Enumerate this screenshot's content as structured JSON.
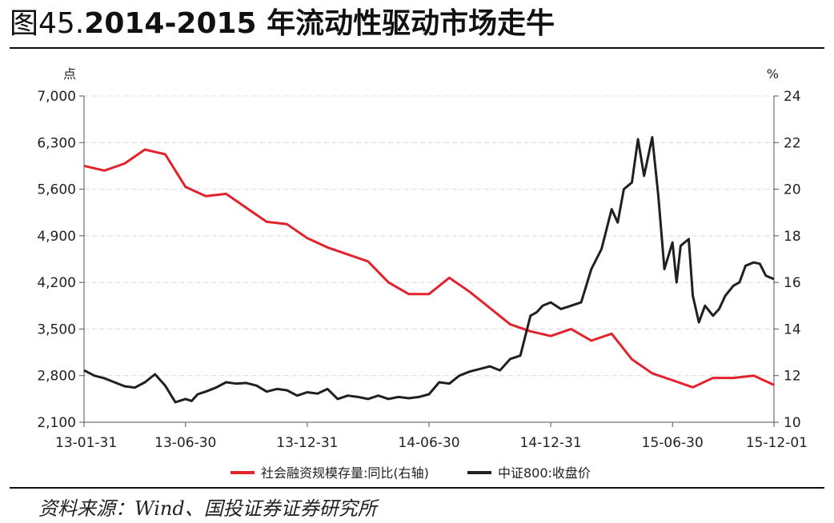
{
  "figure": {
    "number": "图45.",
    "title": "2014-2015 年流动性驱动市场走牛",
    "source": "资料来源：Wind、国投证券证券研究所"
  },
  "chart_data": {
    "type": "line",
    "title": "2014-2015 年流动性驱动市场走牛",
    "y_left": {
      "unit": "点",
      "ticks": [
        "7,000",
        "6,300",
        "5,600",
        "4,900",
        "4,200",
        "3,500",
        "2,800",
        "2,100"
      ],
      "range": [
        2100,
        7000
      ]
    },
    "y_right": {
      "unit": "%",
      "ticks": [
        "24",
        "22",
        "20",
        "18",
        "16",
        "14",
        "12",
        "10"
      ],
      "range": [
        10,
        24
      ]
    },
    "x_ticks": [
      "13-01-31",
      "13-06-30",
      "13-12-31",
      "14-06-30",
      "14-12-31",
      "15-06-30",
      "15-12-01"
    ],
    "x_tick_months": [
      0,
      5,
      11,
      17,
      23,
      29,
      34
    ],
    "x_range_months": [
      0,
      34
    ],
    "legend_position": "bottom",
    "grid": true,
    "series": [
      {
        "name": "社会融资规模存量:同比(右轴)",
        "color": "#e3232c",
        "axis": "right",
        "x_months": [
          0,
          1,
          2,
          3,
          4,
          5,
          6,
          7,
          8,
          9,
          10,
          11,
          12,
          13,
          14,
          15,
          16,
          17,
          18,
          19,
          20,
          21,
          22,
          23,
          24,
          25,
          26,
          27,
          28,
          29,
          30,
          31,
          32,
          33,
          34
        ],
        "values": [
          21.0,
          20.8,
          21.1,
          21.7,
          21.5,
          20.1,
          19.7,
          19.8,
          19.2,
          18.6,
          18.5,
          17.9,
          17.5,
          17.2,
          16.9,
          16.0,
          15.5,
          15.5,
          16.2,
          15.6,
          14.9,
          14.2,
          13.9,
          13.7,
          14.0,
          13.5,
          13.8,
          12.7,
          12.1,
          11.8,
          11.5,
          11.9,
          11.9,
          12.0,
          11.6
        ]
      },
      {
        "name": "中证800:收盘价",
        "color": "#231f20",
        "axis": "left",
        "x_months": [
          0,
          0.5,
          1,
          1.5,
          2,
          2.5,
          3,
          3.5,
          4,
          4.5,
          5,
          5.3,
          5.6,
          6,
          6.5,
          7,
          7.5,
          8,
          8.5,
          9,
          9.5,
          10,
          10.5,
          11,
          11.5,
          12,
          12.5,
          13,
          13.5,
          14,
          14.5,
          15,
          15.5,
          16,
          16.5,
          17,
          17.5,
          18,
          18.5,
          19,
          19.5,
          20,
          20.5,
          21,
          21.5,
          22,
          22.3,
          22.6,
          23,
          23.5,
          24,
          24.5,
          25,
          25.5,
          26,
          26.3,
          26.6,
          27,
          27.3,
          27.6,
          28,
          28.3,
          28.6,
          29,
          29.2,
          29.4,
          29.6,
          29.8,
          30,
          30.3,
          30.6,
          31,
          31.3,
          31.6,
          32,
          32.3,
          32.6,
          33,
          33.3,
          33.6,
          34
        ],
        "values": [
          2880,
          2800,
          2760,
          2700,
          2640,
          2620,
          2700,
          2820,
          2650,
          2400,
          2450,
          2420,
          2520,
          2560,
          2620,
          2700,
          2680,
          2690,
          2650,
          2560,
          2600,
          2580,
          2500,
          2550,
          2530,
          2600,
          2450,
          2500,
          2480,
          2450,
          2500,
          2450,
          2480,
          2460,
          2480,
          2520,
          2700,
          2680,
          2800,
          2860,
          2900,
          2940,
          2880,
          3050,
          3100,
          3700,
          3750,
          3850,
          3900,
          3800,
          3850,
          3900,
          4400,
          4700,
          5300,
          5100,
          5600,
          5700,
          6350,
          5800,
          6380,
          5500,
          4400,
          4800,
          4200,
          4750,
          4800,
          4850,
          4000,
          3600,
          3850,
          3700,
          3800,
          4000,
          4150,
          4200,
          4450,
          4500,
          4480,
          4300,
          4250
        ]
      }
    ]
  }
}
